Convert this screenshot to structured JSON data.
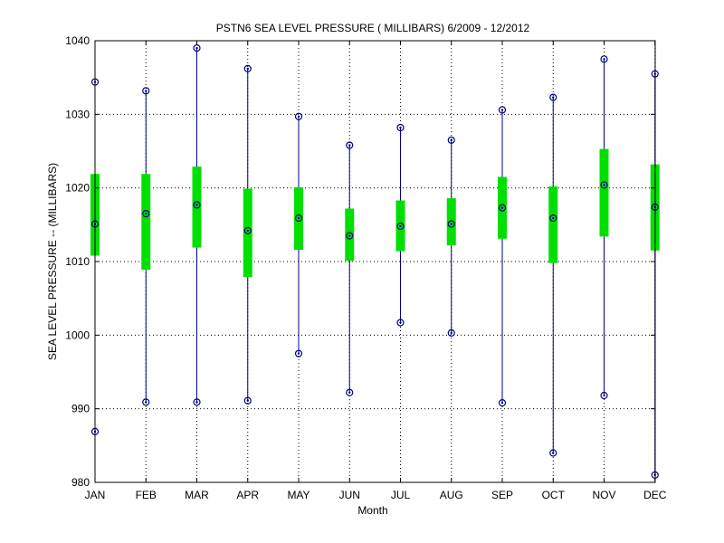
{
  "chart_data": {
    "type": "box",
    "title": "PSTN6  SEA LEVEL PRESSURE ( MILLIBARS) 6/2009 - 12/2012",
    "xlabel": "Month",
    "ylabel": "SEA LEVEL PRESSURE -- (MILLIBARS)",
    "ylim": [
      980,
      1040
    ],
    "yticks": [
      980,
      990,
      1000,
      1010,
      1020,
      1030,
      1040
    ],
    "grid": true,
    "categories": [
      "JAN",
      "FEB",
      "MAR",
      "APR",
      "MAY",
      "JUN",
      "JUL",
      "AUG",
      "SEP",
      "OCT",
      "NOV",
      "DEC"
    ],
    "min": [
      986.9,
      990.9,
      990.9,
      991.1,
      997.5,
      992.2,
      1001.7,
      1000.3,
      990.8,
      984.0,
      991.8,
      981.0
    ],
    "max": [
      1034.4,
      1033.2,
      1039.0,
      1036.2,
      1029.7,
      1025.8,
      1028.2,
      1026.5,
      1030.6,
      1032.3,
      1037.5,
      1035.5
    ],
    "mean": [
      1015.1,
      1016.5,
      1017.7,
      1014.2,
      1015.9,
      1013.5,
      1014.8,
      1015.1,
      1017.3,
      1015.9,
      1020.4,
      1017.4
    ],
    "low": [
      1010.8,
      1008.9,
      1011.9,
      1007.9,
      1011.6,
      1010.1,
      1011.4,
      1012.2,
      1013.1,
      1009.8,
      1013.4,
      1011.5
    ],
    "high": [
      1021.9,
      1021.9,
      1022.9,
      1019.9,
      1020.1,
      1017.2,
      1018.3,
      1018.6,
      1021.5,
      1020.2,
      1025.3,
      1023.2
    ],
    "colors": {
      "whisker": "#00008b",
      "box": "#00e000",
      "marker": "#000080",
      "grid": "#000000"
    }
  }
}
